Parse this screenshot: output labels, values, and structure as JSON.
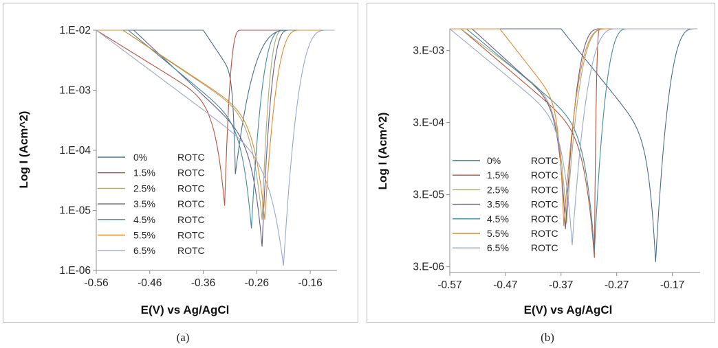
{
  "chart_data": [
    {
      "type": "line",
      "panel_caption": "(a)",
      "xlabel": "E(V) vs Ag/AgCl",
      "ylabel": "Log I (Acm^2)",
      "y_scale": "log",
      "xlim": [
        -0.56,
        -0.11
      ],
      "ylim": [
        1e-06,
        0.01
      ],
      "x_ticks": [
        -0.56,
        -0.46,
        -0.36,
        -0.26,
        -0.16
      ],
      "x_tick_labels": [
        "-0.56",
        "-0.46",
        "-0.36",
        "-0.26",
        "-0.16"
      ],
      "y_ticks": [
        1e-06,
        1e-05,
        0.0001,
        0.001,
        0.01
      ],
      "y_tick_labels": [
        "1.E-06",
        "1.E-05",
        "1.E-04",
        "1.E-03",
        "1.E-02"
      ],
      "legend_position": "lower-left",
      "series": [
        {
          "name": "0%",
          "suffix": "ROTC",
          "color": "#4a6b8a",
          "ecorr": -0.3,
          "icorr": 4e-05,
          "cath_start": -0.36,
          "anod_end": -0.2
        },
        {
          "name": "1.5%",
          "suffix": "ROTC",
          "color": "#b5533c",
          "ecorr": -0.32,
          "icorr": 1.2e-05,
          "cath_start": -0.56,
          "anod_end": -0.29
        },
        {
          "name": "2.5%",
          "suffix": "ROTC",
          "color": "#a9a978",
          "ecorr": -0.25,
          "icorr": 7e-06,
          "cath_start": -0.51,
          "anod_end": -0.21
        },
        {
          "name": "3.5%",
          "suffix": "ROTC",
          "color": "#6a5a88",
          "ecorr": -0.25,
          "icorr": 2.5e-06,
          "cath_start": -0.49,
          "anod_end": -0.2
        },
        {
          "name": "4.5%",
          "suffix": "ROTC",
          "color": "#3f8a9a",
          "ecorr": -0.27,
          "icorr": 5e-06,
          "cath_start": -0.5,
          "anod_end": -0.21
        },
        {
          "name": "5.5%",
          "suffix": "ROTC",
          "color": "#e08a2e",
          "ecorr": -0.245,
          "icorr": 7e-06,
          "cath_start": -0.51,
          "anod_end": -0.18
        },
        {
          "name": "6.5%",
          "suffix": "ROTC",
          "color": "#9aa6cc",
          "ecorr": -0.21,
          "icorr": 1.2e-06,
          "cath_start": -0.56,
          "anod_end": -0.13
        }
      ]
    },
    {
      "type": "line",
      "panel_caption": "(b)",
      "xlabel": "E(V) vs Ag/AgCl",
      "ylabel": "Log I (Acm^2)",
      "y_scale": "log",
      "xlim": [
        -0.57,
        -0.12
      ],
      "ylim": [
        2.5e-06,
        0.006
      ],
      "x_ticks": [
        -0.57,
        -0.47,
        -0.37,
        -0.27,
        -0.17
      ],
      "x_tick_labels": [
        "-0.57",
        "-0.47",
        "-0.37",
        "-0.27",
        "-0.17"
      ],
      "y_ticks": [
        3e-06,
        3e-05,
        0.0003,
        0.003
      ],
      "y_tick_labels": [
        "3.E-06",
        "3.E-05",
        "3.E-04",
        "3.E-03"
      ],
      "legend_position": "lower-left",
      "series": [
        {
          "name": "0%",
          "suffix": "ROTC",
          "color": "#4a6b8a",
          "ecorr": -0.2,
          "icorr": 3.5e-06,
          "cath_start": -0.37,
          "anod_end": -0.13
        },
        {
          "name": "1.5%",
          "suffix": "ROTC",
          "color": "#b5533c",
          "ecorr": -0.31,
          "icorr": 4e-06,
          "cath_start": -0.55,
          "anod_end": -0.3
        },
        {
          "name": "2.5%",
          "suffix": "ROTC",
          "color": "#a9a978",
          "ecorr": -0.36,
          "icorr": 1.2e-05,
          "cath_start": -0.55,
          "anod_end": -0.29
        },
        {
          "name": "3.5%",
          "suffix": "ROTC",
          "color": "#6a5a88",
          "ecorr": -0.362,
          "icorr": 1e-05,
          "cath_start": -0.53,
          "anod_end": -0.3
        },
        {
          "name": "4.5%",
          "suffix": "ROTC",
          "color": "#3f8a9a",
          "ecorr": -0.31,
          "icorr": 5e-06,
          "cath_start": -0.54,
          "anod_end": -0.25
        },
        {
          "name": "5.5%",
          "suffix": "ROTC",
          "color": "#e08a2e",
          "ecorr": -0.365,
          "icorr": 1.1e-05,
          "cath_start": -0.48,
          "anod_end": -0.29
        },
        {
          "name": "6.5%",
          "suffix": "ROTC",
          "color": "#9aa6cc",
          "ecorr": -0.35,
          "icorr": 6e-06,
          "cath_start": -0.57,
          "anod_end": -0.27
        }
      ]
    }
  ]
}
